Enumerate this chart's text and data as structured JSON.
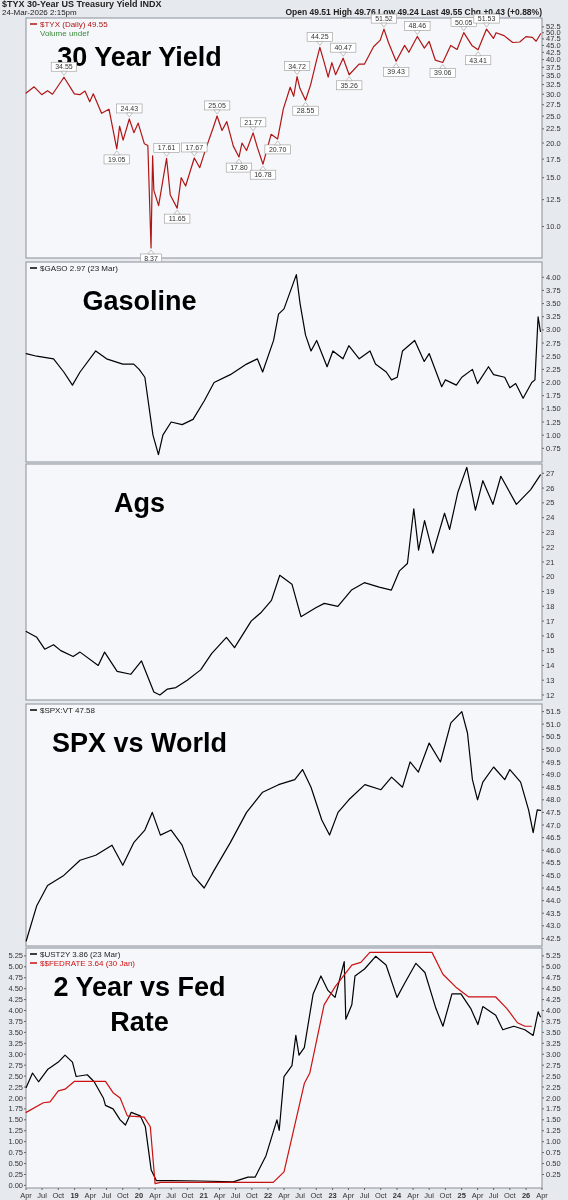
{
  "chart_data": [
    {
      "type": "line",
      "title": "30 Year Yield",
      "subtitle": "$TYX 30-Year US Treasury Yield INDX",
      "log": true,
      "legend": "top left",
      "tick_labels": "y",
      "xlim": [
        "2018-04-01",
        "2026-04-01"
      ],
      "ylim": [
        7.7,
        56.5
      ],
      "yticks": [
        {
          "value": 10,
          "label": "10.0"
        },
        12.5,
        {
          "value": 15,
          "label": "15.0"
        },
        17.5,
        {
          "value": 20,
          "label": "20.0"
        },
        22.5,
        {
          "value": 25,
          "label": "25.0"
        },
        27.5,
        {
          "value": 30,
          "label": "30.0"
        },
        32.5,
        {
          "value": 35,
          "label": "35.0"
        },
        37.5,
        {
          "value": 40,
          "label": "40.0"
        },
        42.5,
        {
          "value": 45,
          "label": "45.0"
        },
        47.5,
        {
          "value": 50,
          "label": "50.0"
        },
        52.5
      ],
      "x": [
        "2018-04-02",
        "2018-05-17",
        "2018-06-29",
        "2018-08-01",
        "2018-08-29",
        "2018-11-02",
        "2018-12-31",
        "2019-01-31",
        "2019-03-01",
        "2019-03-28",
        "2019-04-17",
        "2019-06-03",
        "2019-07-15",
        "2019-08-28",
        "2019-09-13",
        "2019-10-03",
        "2019-11-07",
        "2019-12-03",
        "2019-12-27",
        "2020-01-31",
        "2020-02-20",
        "2020-03-09",
        "2020-03-18",
        "2020-03-25",
        "2020-04-21",
        "2020-06-05",
        "2020-06-26",
        "2020-08-04",
        "2020-08-27",
        "2020-09-21",
        "2020-11-09",
        "2020-12-10",
        "2021-01-11",
        "2021-02-25",
        "2021-03-18",
        "2021-04-15",
        "2021-05-12",
        "2021-06-18",
        "2021-07-20",
        "2021-08-06",
        "2021-09-01",
        "2021-10-08",
        "2021-11-01",
        "2021-12-03",
        "2022-01-18",
        "2022-02-24",
        "2022-03-28",
        "2022-05-06",
        "2022-05-26",
        "2022-06-14",
        "2022-06-30",
        "2022-08-01",
        "2022-08-30",
        "2022-09-27",
        "2022-10-21",
        "2022-11-15",
        "2022-12-07",
        "2022-12-28",
        "2023-01-18",
        "2023-03-02",
        "2023-04-05",
        "2023-05-31",
        "2023-06-30",
        "2023-08-21",
        "2023-09-28",
        "2023-10-19",
        "2023-11-14",
        "2023-12-27",
        "2024-02-13",
        "2024-03-08",
        "2024-04-25",
        "2024-06-04",
        "2024-07-01",
        "2024-08-05",
        "2024-09-16",
        "2024-10-31",
        "2024-12-06",
        "2025-01-13",
        "2025-02-28",
        "2025-04-04",
        "2025-05-22",
        "2025-06-30",
        "2025-07-15",
        "2025-08-29",
        "2025-10-17",
        "2025-11-26",
        "2025-12-31",
        "2026-02-05",
        "2026-02-27",
        "2026-03-24"
      ],
      "series": [
        {
          "name": "$TYX (Daily) 49.55",
          "color": "#b01515",
          "values": [
            30.3,
            31.9,
            29.9,
            30.9,
            30.0,
            34.55,
            30.1,
            29.9,
            30.8,
            28.2,
            30.1,
            25.6,
            26.5,
            19.05,
            23.0,
            20.5,
            24.43,
            21.8,
            23.6,
            19.9,
            19.6,
            8.37,
            18.0,
            13.5,
            11.9,
            17.61,
            13.0,
            11.65,
            15.0,
            14.0,
            17.67,
            16.3,
            18.9,
            22.8,
            25.05,
            22.2,
            23.9,
            19.5,
            17.8,
            20.0,
            18.8,
            21.77,
            19.3,
            16.78,
            21.5,
            20.7,
            26.5,
            31.8,
            29.5,
            34.72,
            31.5,
            28.55,
            32.5,
            38.5,
            44.25,
            39.0,
            34.6,
            39.0,
            35.3,
            40.47,
            35.26,
            38.5,
            38.5,
            44.5,
            47.0,
            51.52,
            46.0,
            39.43,
            45.0,
            42.5,
            48.46,
            44.0,
            46.5,
            39.8,
            39.06,
            45.0,
            43.5,
            50.05,
            45.0,
            43.41,
            51.53,
            47.7,
            50.0,
            48.8,
            46.1,
            46.3,
            48.4,
            48.1,
            46.6,
            49.55
          ]
        }
      ],
      "annotations": [
        "24-Mar-2026 2:15pm",
        "Open 49.51 High 49.76 Low 49.24 Last 49.55 Chg +0.43 (+0.88%)",
        "Volume undef",
        {
          "text": "34.55",
          "x": "2018-11-02",
          "y": 34.55
        },
        {
          "text": "19.05",
          "x": "2019-08-28",
          "y": 19.05
        },
        {
          "text": "24.43",
          "x": "2019-11-07",
          "y": 24.43
        },
        {
          "text": "8.37",
          "x": "2020-03-09",
          "y": 8.37
        },
        {
          "text": "17.61",
          "x": "2020-06-05",
          "y": 17.61
        },
        {
          "text": "11.65",
          "x": "2020-08-04",
          "y": 11.65
        },
        {
          "text": "17.67",
          "x": "2020-11-09",
          "y": 17.67
        },
        {
          "text": "25.05",
          "x": "2021-03-18",
          "y": 25.05
        },
        {
          "text": "17.80",
          "x": "2021-07-20",
          "y": 17.8
        },
        {
          "text": "21.77",
          "x": "2021-10-08",
          "y": 21.77
        },
        {
          "text": "16.78",
          "x": "2021-12-03",
          "y": 16.78
        },
        {
          "text": "20.70",
          "x": "2022-02-24",
          "y": 20.7
        },
        {
          "text": "34.72",
          "x": "2022-06-14",
          "y": 34.72
        },
        {
          "text": "28.55",
          "x": "2022-08-01",
          "y": 28.55
        },
        {
          "text": "44.25",
          "x": "2022-10-21",
          "y": 44.25
        },
        {
          "text": "40.47",
          "x": "2023-03-02",
          "y": 40.47
        },
        {
          "text": "35.26",
          "x": "2023-04-05",
          "y": 35.26
        },
        {
          "text": "51.52",
          "x": "2023-10-19",
          "y": 51.52
        },
        {
          "text": "39.43",
          "x": "2023-12-27",
          "y": 39.43
        },
        {
          "text": "48.46",
          "x": "2024-04-25",
          "y": 48.46
        },
        {
          "text": "39.06",
          "x": "2024-09-16",
          "y": 39.06
        },
        {
          "text": "50.05",
          "x": "2025-01-13",
          "y": 50.05
        },
        {
          "text": "43.41",
          "x": "2025-04-04",
          "y": 43.41
        },
        {
          "text": "51.53",
          "x": "2025-05-22",
          "y": 51.53
        }
      ]
    },
    {
      "type": "line",
      "title": "Gasoline",
      "legend": "top left",
      "tick_labels": "y",
      "xlim": [
        "2018-04-01",
        "2026-04-01"
      ],
      "ylim": [
        0.49,
        4.29
      ],
      "yticks": [
        0.75,
        {
          "value": 1,
          "label": "1.00"
        },
        1.25,
        {
          "value": 1.5,
          "label": "1.50"
        },
        1.75,
        {
          "value": 2,
          "label": "2.00"
        },
        2.25,
        {
          "value": 2.5,
          "label": "2.50"
        },
        2.75,
        {
          "value": 3,
          "label": "3.00"
        },
        3.25,
        {
          "value": 3.5,
          "label": "3.50"
        },
        3.75,
        {
          "value": 4,
          "label": "4.00"
        }
      ],
      "x": [
        "2018-04-02",
        "2018-06-01",
        "2018-09-04",
        "2018-11-01",
        "2018-12-20",
        "2019-02-01",
        "2019-05-01",
        "2019-07-01",
        "2019-10-01",
        "2019-12-02",
        "2020-01-02",
        "2020-02-03",
        "2020-03-20",
        "2020-04-20",
        "2020-05-15",
        "2020-07-01",
        "2020-09-01",
        "2020-11-02",
        "2021-01-04",
        "2021-03-01",
        "2021-06-01",
        "2021-09-01",
        "2021-11-01",
        "2021-12-01",
        "2022-02-01",
        "2022-03-01",
        "2022-04-01",
        "2022-06-10",
        "2022-07-01",
        "2022-08-01",
        "2022-09-01",
        "2022-10-03",
        "2022-12-01",
        "2023-01-03",
        "2023-03-01",
        "2023-04-03",
        "2023-06-01",
        "2023-08-01",
        "2023-09-01",
        "2023-11-01",
        "2023-12-01",
        "2024-01-02",
        "2024-02-01",
        "2024-04-10",
        "2024-06-03",
        "2024-07-01",
        "2024-09-10",
        "2024-10-01",
        "2024-12-02",
        "2025-01-02",
        "2025-03-03",
        "2025-04-01",
        "2025-06-02",
        "2025-07-01",
        "2025-09-02",
        "2025-10-01",
        "2025-11-03",
        "2025-12-15",
        "2026-02-02",
        "2026-02-20",
        "2026-03-10",
        "2026-03-23"
      ],
      "series": [
        {
          "name": "$GASO 2.97 (23 Mar)",
          "color": "#000000",
          "values": [
            2.55,
            2.5,
            2.45,
            2.2,
            1.95,
            2.2,
            2.6,
            2.45,
            2.35,
            2.35,
            2.25,
            2.1,
            1.0,
            0.63,
            1.0,
            1.25,
            1.2,
            1.3,
            1.65,
            2.0,
            2.15,
            2.35,
            2.45,
            2.2,
            2.8,
            3.3,
            3.4,
            4.05,
            3.5,
            2.9,
            2.6,
            2.8,
            2.3,
            2.6,
            2.45,
            2.7,
            2.45,
            2.6,
            2.35,
            2.2,
            2.05,
            2.1,
            2.6,
            2.8,
            2.4,
            2.55,
            1.92,
            2.05,
            1.95,
            2.1,
            2.25,
            1.98,
            2.3,
            2.15,
            2.1,
            1.9,
            1.98,
            1.7,
            2.0,
            2.05,
            3.25,
            2.97
          ]
        }
      ]
    },
    {
      "type": "line",
      "title": "Ags",
      "tick_labels": "y",
      "xlim": [
        "2018-04-01",
        "2026-04-01"
      ],
      "ylim": [
        11.66,
        27.63
      ],
      "yticks": [
        12,
        13,
        14,
        15,
        16,
        17,
        18,
        19,
        20,
        21,
        22,
        23,
        24,
        25,
        26,
        27
      ],
      "x": [
        "2018-04-02",
        "2018-06-01",
        "2018-07-16",
        "2018-09-04",
        "2018-10-15",
        "2018-12-24",
        "2019-02-01",
        "2019-05-15",
        "2019-06-20",
        "2019-08-30",
        "2019-11-15",
        "2020-01-15",
        "2020-03-25",
        "2020-04-28",
        "2020-06-10",
        "2020-07-28",
        "2020-09-30",
        "2020-12-15",
        "2021-02-15",
        "2021-05-10",
        "2021-06-25",
        "2021-09-27",
        "2021-11-24",
        "2022-01-20",
        "2022-03-08",
        "2022-05-16",
        "2022-07-06",
        "2022-09-28",
        "2022-11-15",
        "2023-01-31",
        "2023-04-18",
        "2023-06-30",
        "2023-09-22",
        "2023-11-30",
        "2024-01-15",
        "2024-02-29",
        "2024-04-05",
        "2024-05-02",
        "2024-06-05",
        "2024-07-22",
        "2024-09-26",
        "2024-10-25",
        "2024-12-10",
        "2025-01-30",
        "2025-03-20",
        "2025-05-01",
        "2025-06-27",
        "2025-08-11",
        "2025-11-07",
        "2026-01-27",
        "2026-03-23"
      ],
      "series": [
        {
          "color": "#000000",
          "values": [
            16.3,
            15.9,
            15.1,
            15.4,
            15.0,
            14.6,
            14.9,
            14.0,
            14.9,
            13.6,
            13.4,
            14.3,
            12.2,
            12.0,
            12.4,
            12.5,
            13.0,
            13.7,
            14.8,
            15.9,
            15.2,
            17.0,
            17.6,
            18.4,
            20.1,
            19.5,
            17.3,
            17.9,
            18.2,
            18.0,
            19.1,
            19.6,
            19.3,
            19.1,
            20.4,
            20.9,
            24.6,
            21.8,
            23.8,
            21.6,
            24.3,
            23.2,
            25.7,
            27.4,
            24.5,
            26.5,
            24.9,
            26.8,
            24.9,
            25.9,
            26.89
          ]
        }
      ]
    },
    {
      "type": "line",
      "title": "SPX vs World",
      "legend": "top left",
      "tick_labels": "y",
      "xlim": [
        "2018-04-01",
        "2026-04-01"
      ],
      "ylim": [
        42.2,
        51.8
      ],
      "yticks": [
        42.5,
        {
          "value": 43,
          "label": "43.0"
        },
        43.5,
        {
          "value": 44,
          "label": "44.0"
        },
        44.5,
        {
          "value": 45,
          "label": "45.0"
        },
        45.5,
        {
          "value": 46,
          "label": "46.0"
        },
        46.5,
        {
          "value": 47,
          "label": "47.0"
        },
        47.5,
        {
          "value": 48,
          "label": "48.0"
        },
        48.5,
        {
          "value": 49,
          "label": "49.0"
        },
        49.5,
        {
          "value": 50,
          "label": "50.0"
        },
        50.5,
        {
          "value": 51,
          "label": "51.0"
        },
        51.5
      ],
      "x": [
        "2018-04-02",
        "2018-06-01",
        "2018-08-01",
        "2018-11-01",
        "2019-02-01",
        "2019-05-01",
        "2019-08-01",
        "2019-10-01",
        "2019-12-02",
        "2020-02-03",
        "2020-03-16",
        "2020-05-01",
        "2020-07-01",
        "2020-09-01",
        "2020-11-02",
        "2021-01-04",
        "2021-03-01",
        "2021-06-01",
        "2021-09-01",
        "2021-12-01",
        "2022-03-01",
        "2022-06-01",
        "2022-07-15",
        "2022-09-01",
        "2022-11-01",
        "2022-12-15",
        "2023-02-01",
        "2023-04-03",
        "2023-07-03",
        "2023-10-02",
        "2023-12-01",
        "2024-02-01",
        "2024-03-15",
        "2024-05-01",
        "2024-07-01",
        "2024-09-03",
        "2024-11-01",
        "2025-01-02",
        "2025-02-03",
        "2025-03-03",
        "2025-04-01",
        "2025-05-01",
        "2025-07-01",
        "2025-09-02",
        "2025-10-01",
        "2025-12-01",
        "2026-01-15",
        "2026-02-10",
        "2026-03-05",
        "2026-03-23"
      ],
      "series": [
        {
          "name": "$SPX:VT 47.58",
          "color": "#000000",
          "values": [
            42.4,
            43.8,
            44.6,
            45.0,
            45.6,
            45.8,
            46.2,
            45.4,
            46.3,
            46.8,
            47.5,
            46.6,
            46.8,
            46.2,
            45.0,
            44.5,
            45.2,
            46.3,
            47.5,
            48.3,
            48.6,
            48.8,
            49.2,
            48.5,
            47.2,
            46.6,
            47.5,
            48.0,
            48.6,
            48.4,
            48.9,
            48.5,
            49.5,
            49.1,
            50.25,
            49.5,
            51.05,
            51.5,
            50.65,
            48.8,
            48.0,
            48.7,
            49.3,
            48.8,
            49.2,
            48.7,
            47.6,
            46.7,
            47.6,
            47.58
          ]
        }
      ]
    },
    {
      "type": "line",
      "title": "2 Year vs Fed Rate",
      "legend": "top left",
      "xlim": [
        "2018-04-01",
        "2026-04-01"
      ],
      "ylim": [
        -0.06,
        5.43
      ],
      "y2lim": [
        -0.06,
        5.43
      ],
      "xticks": [
        {
          "value": "2018-04-01",
          "label": "Apr"
        },
        {
          "value": "2018-07-01",
          "label": "Jul"
        },
        {
          "value": "2018-10-01",
          "label": "Oct"
        },
        {
          "value": "2019-01-01",
          "label": "19"
        },
        {
          "value": "2019-04-01",
          "label": "Apr"
        },
        {
          "value": "2019-07-01",
          "label": "Jul"
        },
        {
          "value": "2019-10-01",
          "label": "Oct"
        },
        {
          "value": "2020-01-01",
          "label": "20"
        },
        {
          "value": "2020-04-01",
          "label": "Apr"
        },
        {
          "value": "2020-07-01",
          "label": "Jul"
        },
        {
          "value": "2020-10-01",
          "label": "Oct"
        },
        {
          "value": "2021-01-01",
          "label": "21"
        },
        {
          "value": "2021-04-01",
          "label": "Apr"
        },
        {
          "value": "2021-07-01",
          "label": "Jul"
        },
        {
          "value": "2021-10-01",
          "label": "Oct"
        },
        {
          "value": "2022-01-01",
          "label": "22"
        },
        {
          "value": "2022-04-01",
          "label": "Apr"
        },
        {
          "value": "2022-07-01",
          "label": "Jul"
        },
        {
          "value": "2022-10-01",
          "label": "Oct"
        },
        {
          "value": "2023-01-01",
          "label": "23"
        },
        {
          "value": "2023-04-01",
          "label": "Apr"
        },
        {
          "value": "2023-07-01",
          "label": "Jul"
        },
        {
          "value": "2023-10-01",
          "label": "Oct"
        },
        {
          "value": "2024-01-01",
          "label": "24"
        },
        {
          "value": "2024-04-01",
          "label": "Apr"
        },
        {
          "value": "2024-07-01",
          "label": "Jul"
        },
        {
          "value": "2024-10-01",
          "label": "Oct"
        },
        {
          "value": "2025-01-01",
          "label": "25"
        },
        {
          "value": "2025-04-01",
          "label": "Apr"
        },
        {
          "value": "2025-07-01",
          "label": "Jul"
        },
        {
          "value": "2025-10-01",
          "label": "Oct"
        },
        {
          "value": "2026-01-01",
          "label": "26"
        },
        {
          "value": "2026-04-01",
          "label": "Apr"
        }
      ],
      "yticks": [
        {
          "value": 0,
          "label": "0.00"
        },
        0.25,
        {
          "value": 0.5,
          "label": "0.50"
        },
        0.75,
        {
          "value": 1,
          "label": "1.00"
        },
        1.25,
        {
          "value": 1.5,
          "label": "1.50"
        },
        1.75,
        {
          "value": 2,
          "label": "2.00"
        },
        2.25,
        {
          "value": 2.5,
          "label": "2.50"
        },
        2.75,
        {
          "value": 3,
          "label": "3.00"
        },
        3.25,
        {
          "value": 3.5,
          "label": "3.50"
        },
        3.75,
        {
          "value": 4,
          "label": "4.00"
        },
        4.25,
        {
          "value": 4.5,
          "label": "4.50"
        },
        4.75,
        {
          "value": 5,
          "label": "5.00"
        },
        5.25
      ],
      "y2ticks": [
        0.25,
        {
          "value": 0.5,
          "label": "0.50"
        },
        0.75,
        {
          "value": 1,
          "label": "1.00"
        },
        1.25,
        {
          "value": 1.5,
          "label": "1.50"
        },
        1.75,
        {
          "value": 2,
          "label": "2.00"
        },
        2.25,
        {
          "value": 2.5,
          "label": "2.50"
        },
        2.75,
        {
          "value": 3,
          "label": "3.00"
        },
        3.25,
        {
          "value": 3.5,
          "label": "3.50"
        },
        3.75,
        {
          "value": 4,
          "label": "4.00"
        },
        4.25,
        {
          "value": 4.5,
          "label": "4.50"
        },
        4.75,
        {
          "value": 5,
          "label": "5.00"
        },
        5.25
      ],
      "series": [
        {
          "name": "$UST2Y 3.86 (23 Mar)",
          "color": "#000000",
          "x": [
            "2018-04-02",
            "2018-05-08",
            "2018-06-11",
            "2018-08-01",
            "2018-10-01",
            "2018-11-08",
            "2018-12-20",
            "2019-01-10",
            "2019-03-14",
            "2019-04-22",
            "2019-06-13",
            "2019-06-25",
            "2019-08-07",
            "2019-09-16",
            "2019-10-16",
            "2019-11-18",
            "2020-01-08",
            "2020-02-06",
            "2020-03-10",
            "2020-04-08",
            "2020-07-01",
            "2020-12-14",
            "2021-06-17",
            "2021-09-09",
            "2021-10-20",
            "2021-12-20",
            "2022-02-20",
            "2022-03-05",
            "2022-04-01",
            "2022-05-16",
            "2022-06-07",
            "2022-06-25",
            "2022-07-25",
            "2022-09-13",
            "2022-10-27",
            "2022-12-06",
            "2023-01-15",
            "2023-03-08",
            "2023-03-17",
            "2023-04-20",
            "2023-05-08",
            "2023-07-01",
            "2023-09-02",
            "2023-10-31",
            "2024-01-01",
            "2024-02-14",
            "2024-04-17",
            "2024-06-07",
            "2024-08-08",
            "2024-09-17",
            "2024-11-07",
            "2024-12-28",
            "2025-02-21",
            "2025-04-03",
            "2025-05-01",
            "2025-07-13",
            "2025-08-22",
            "2025-10-23",
            "2025-12-25",
            "2026-02-10",
            "2026-03-10",
            "2026-03-23"
          ],
          "values": [
            2.24,
            2.57,
            2.37,
            2.65,
            2.82,
            2.98,
            2.82,
            2.49,
            2.53,
            2.37,
            2.0,
            1.83,
            1.75,
            1.5,
            1.38,
            1.67,
            1.59,
            1.34,
            0.35,
            0.11,
            0.11,
            0.1,
            0.08,
            0.19,
            0.19,
            0.68,
            1.5,
            1.26,
            2.49,
            2.74,
            3.43,
            2.98,
            3.15,
            4.38,
            4.79,
            4.46,
            4.3,
            5.12,
            3.8,
            4.13,
            4.79,
            4.95,
            5.24,
            5.04,
            4.3,
            4.63,
            5.08,
            4.87,
            4.05,
            3.64,
            4.38,
            4.38,
            4.05,
            3.68,
            4.09,
            3.89,
            3.56,
            3.64,
            3.56,
            3.43,
            3.97,
            3.86
          ]
        },
        {
          "name": "$$FEDRATE 3.64 (30 Jan)",
          "color": "#cc1111",
          "x": [
            "2018-04-02",
            "2018-07-08",
            "2018-08-15",
            "2018-10-01",
            "2018-11-08",
            "2019-01-01",
            "2019-06-25",
            "2019-08-07",
            "2019-09-16",
            "2019-10-27",
            "2020-01-30",
            "2020-03-05",
            "2020-04-01",
            "2020-05-01",
            "2021-10-20",
            "2022-01-30",
            "2022-04-01",
            "2022-07-25",
            "2022-08-25",
            "2022-11-14",
            "2023-01-15",
            "2023-04-20",
            "2023-06-10",
            "2023-07-31",
            "2024-07-17",
            "2024-09-17",
            "2024-11-28",
            "2025-02-10",
            "2025-07-13",
            "2025-09-13",
            "2025-11-13",
            "2025-12-25",
            "2026-01-30"
          ],
          "values": [
            1.67,
            1.89,
            1.91,
            2.16,
            2.2,
            2.38,
            2.38,
            2.12,
            2.0,
            1.59,
            1.56,
            1.34,
            0.04,
            0.07,
            0.07,
            0.07,
            0.31,
            2.33,
            2.57,
            4.13,
            4.54,
            5.04,
            5.1,
            5.33,
            5.33,
            4.83,
            4.54,
            4.31,
            4.31,
            4.05,
            3.72,
            3.64,
            3.64
          ]
        }
      ]
    }
  ]
}
